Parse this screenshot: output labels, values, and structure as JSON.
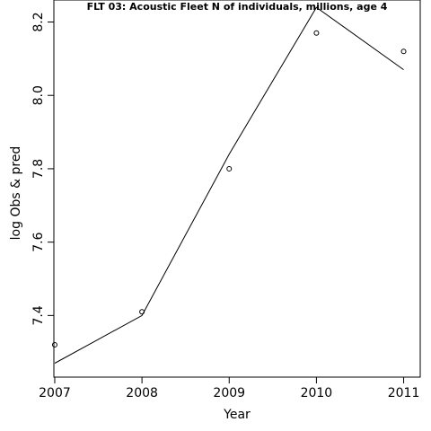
{
  "chart_data": {
    "type": "line",
    "title": "FLT 03: Acoustic Fleet  N of individuals, millions, age 4",
    "xlabel": "Year",
    "ylabel": "log Obs & pred",
    "xlim": [
      2006.99,
      2011.19
    ],
    "ylim": [
      7.232,
      8.26
    ],
    "xticks": [
      2007,
      2008,
      2009,
      2010,
      2011
    ],
    "xtick_labels": [
      "2007",
      "2008",
      "2009",
      "2010",
      "2011"
    ],
    "yticks": [
      7.4,
      7.6,
      7.8,
      8.0,
      8.2
    ],
    "ytick_labels": [
      "7.4",
      "7.6",
      "7.8",
      "8.0",
      "8.2"
    ],
    "grid": false,
    "series": [
      {
        "style": "points",
        "x": [
          2007,
          2008,
          2009,
          2010,
          2011
        ],
        "y": [
          7.32,
          7.41,
          7.8,
          8.17,
          8.12
        ]
      },
      {
        "style": "line",
        "x": [
          2007,
          2008,
          2009,
          2010,
          2011
        ],
        "y": [
          7.27,
          7.4,
          7.84,
          8.24,
          8.07
        ]
      }
    ]
  }
}
